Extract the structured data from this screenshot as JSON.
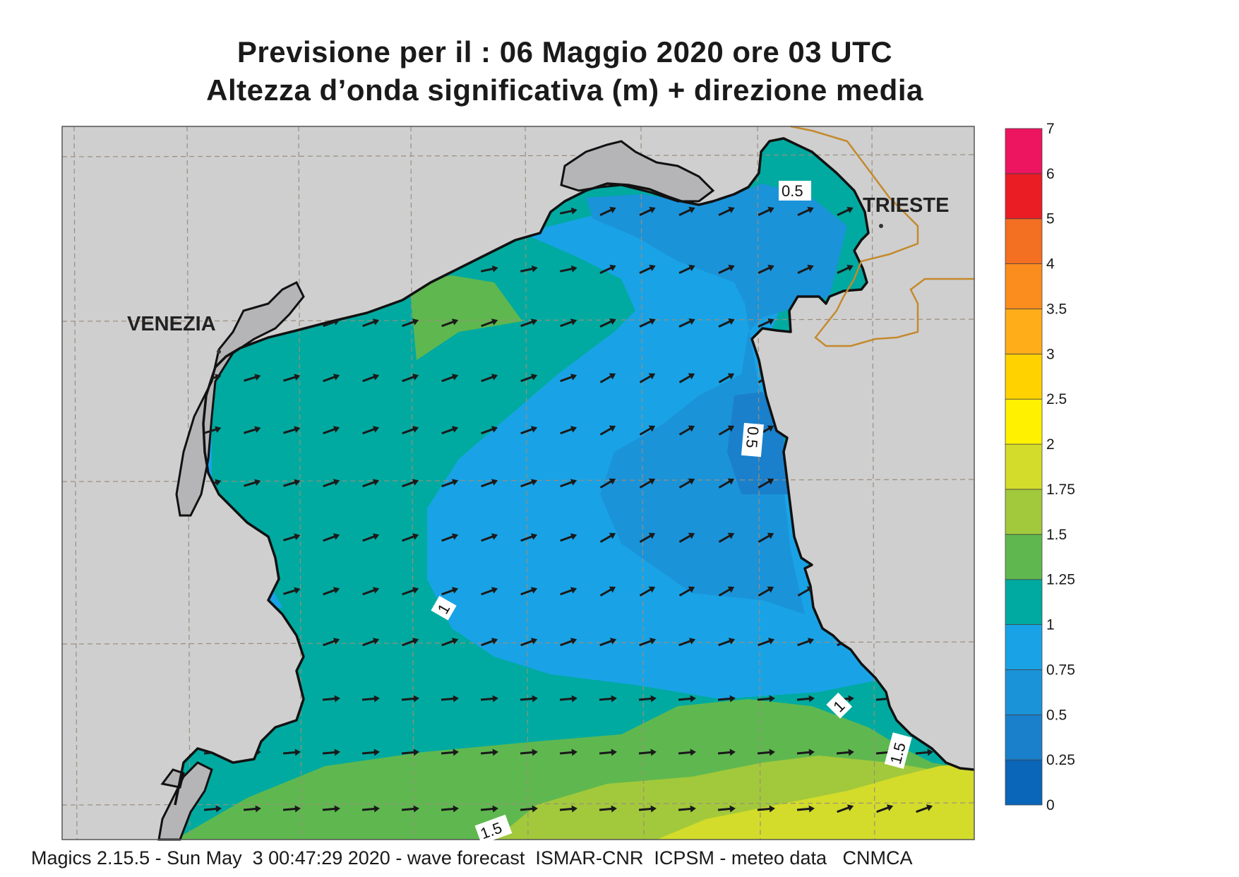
{
  "title": {
    "line1": "Previsione per il  :  06   Maggio  2020   ore 03 UTC",
    "line2": "Altezza d’onda significativa (m) + direzione media"
  },
  "footer": "Magics 2.15.5 - Sun May  3 00:47:29 2020 - wave forecast  ISMAR-CNR  ICPSM - meteo data   CNMCA",
  "cities": {
    "venezia": "VENEZIA",
    "trieste": "TRIESTE"
  },
  "contour_labels": {
    "a": "0.5",
    "b": "0.5",
    "c": "1",
    "d": "1",
    "e": "1.5",
    "f": "1.5"
  },
  "colorbar": {
    "ticks": [
      "0",
      "0.25",
      "0.5",
      "0.75",
      "1",
      "1.25",
      "1.5",
      "1.75",
      "2",
      "2.5",
      "3",
      "3.5",
      "4",
      "5",
      "6",
      "7"
    ],
    "colors": [
      "#0a66b8",
      "#1a80cc",
      "#1b93d9",
      "#19a3e6",
      "#00aaa0",
      "#5fb84f",
      "#a2c93b",
      "#d3dc2a",
      "#fff100",
      "#ffd200",
      "#ffad18",
      "#fb8c1e",
      "#f36f22",
      "#ea1c24",
      "#ed1460"
    ]
  },
  "map_colors": {
    "land": "#cfcfd0",
    "grid": "#9a8e7a",
    "coast": "#111111",
    "border": "#c48a2c",
    "lagoon": "#b5b5b8",
    "arrow": "#1a1a1a"
  }
}
